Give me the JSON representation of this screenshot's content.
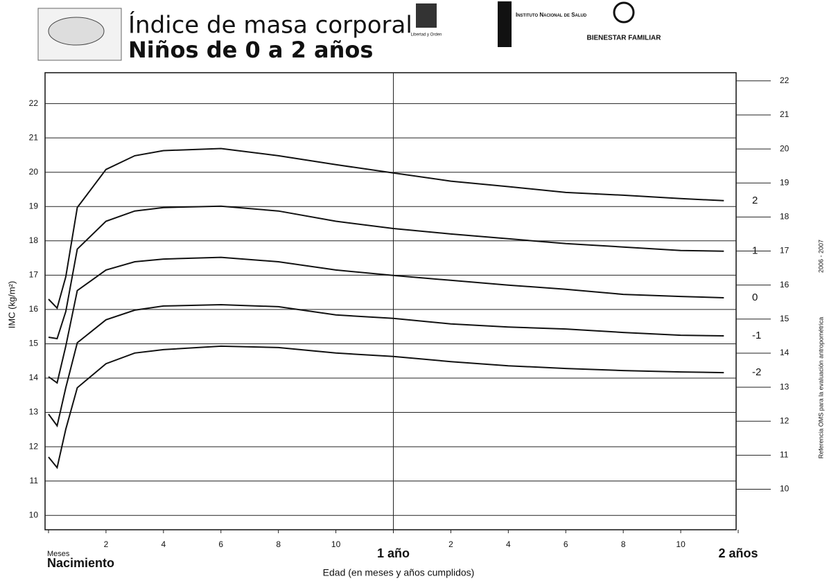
{
  "chart_data": {
    "type": "line",
    "title": "Índice de masa corporal",
    "subtitle": "Niños de 0 a 2 años",
    "logos": [
      "Libertad y Orden",
      "Instituto Nacional de Salud",
      "BIENESTAR FAMILIAR"
    ],
    "y_label": "IMC (kg/m²)",
    "x_label": "Edad (en meses y años cumplidos)",
    "x_unit": "Meses",
    "source": "Referencia OMS para la evaluación antropométrica",
    "source_years": "2006 - 2007",
    "x": [
      0,
      0.3,
      0.6,
      1,
      2,
      3,
      4,
      6,
      8,
      10,
      12,
      14,
      16,
      18,
      20,
      22,
      23.5
    ],
    "series": [
      {
        "name": "2",
        "color": "#111111",
        "values": [
          16.3,
          16.04,
          16.95,
          18.97,
          20.08,
          20.48,
          20.63,
          20.69,
          20.48,
          20.22,
          19.98,
          19.74,
          19.58,
          19.41,
          19.33,
          19.23,
          19.17
        ]
      },
      {
        "name": "1",
        "color": "#111111",
        "values": [
          15.19,
          15.15,
          15.94,
          17.76,
          18.57,
          18.87,
          18.97,
          19.01,
          18.87,
          18.57,
          18.36,
          18.2,
          18.06,
          17.92,
          17.82,
          17.72,
          17.7
        ]
      },
      {
        "name": "0",
        "color": "#111111",
        "values": [
          14.04,
          13.86,
          14.93,
          16.55,
          17.15,
          17.39,
          17.47,
          17.52,
          17.39,
          17.15,
          16.99,
          16.85,
          16.71,
          16.59,
          16.44,
          16.38,
          16.34
        ]
      },
      {
        "name": "-1",
        "color": "#111111",
        "values": [
          12.95,
          12.61,
          13.72,
          15.03,
          15.7,
          15.98,
          16.1,
          16.14,
          16.08,
          15.84,
          15.74,
          15.58,
          15.49,
          15.43,
          15.33,
          15.25,
          15.23
        ]
      },
      {
        "name": "-2",
        "color": "#111111",
        "values": [
          11.7,
          11.39,
          12.51,
          13.72,
          14.42,
          14.73,
          14.83,
          14.93,
          14.89,
          14.73,
          14.63,
          14.48,
          14.36,
          14.28,
          14.22,
          14.18,
          14.16
        ]
      }
    ],
    "xlim": [
      0,
      24
    ],
    "xticks": [
      {
        "value": 0,
        "label": "Nacimiento"
      },
      2,
      4,
      6,
      8,
      10,
      {
        "value": 12,
        "label": "1 año"
      },
      {
        "value": 14,
        "label": "2"
      },
      {
        "value": 16,
        "label": "4"
      },
      {
        "value": 18,
        "label": "6"
      },
      {
        "value": 20,
        "label": "8"
      },
      {
        "value": 22,
        "label": "10"
      },
      {
        "value": 24,
        "label": "2 años"
      }
    ],
    "ylim": [
      9.58,
      22.9
    ],
    "yticks": [
      10,
      11,
      12,
      13,
      14,
      15,
      16,
      17,
      18,
      19,
      20,
      21,
      22
    ],
    "y2lim": [
      8.81,
      22.24
    ],
    "y2ticks": [
      10,
      11,
      12,
      13,
      14,
      15,
      16,
      17,
      18,
      19,
      20,
      21,
      22
    ],
    "grid": true
  }
}
